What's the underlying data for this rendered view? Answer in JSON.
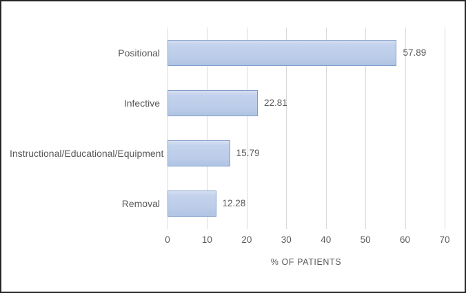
{
  "chart_data": {
    "type": "bar",
    "orientation": "horizontal",
    "title": "",
    "xlabel": "% OF PATIENTS",
    "ylabel": "",
    "categories": [
      "Positional",
      "Infective",
      "Instructional/Educational/Equipment",
      "Removal"
    ],
    "values": [
      57.89,
      22.81,
      15.79,
      12.28
    ],
    "data_labels": [
      "57.89",
      "22.81",
      "15.79",
      "12.28"
    ],
    "xlim": [
      0,
      70
    ],
    "xticks": [
      0,
      10,
      20,
      30,
      40,
      50,
      60,
      70
    ],
    "grid": "vertical-only",
    "legend": "none"
  },
  "colors": {
    "background": "#ffffff",
    "frame_border": "#262626",
    "bar_fill_top": "#d6e0f2",
    "bar_fill_bottom": "#afc4e3",
    "bar_border": "#7f9ccb",
    "gridline": "#d9d9d9",
    "text": "#595959"
  }
}
